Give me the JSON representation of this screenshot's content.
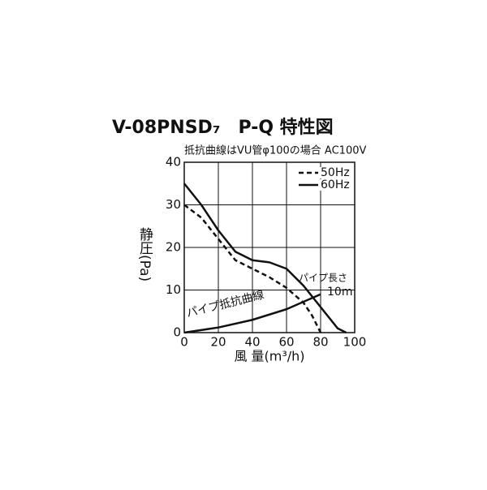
{
  "chart_data": {
    "type": "line",
    "title": "V-08PNSD₇　P-Q 特性図",
    "subtitle": "抵抗曲線はVU管φ100の場合 AC100V",
    "x_label": "風 量(m³/h)",
    "y_label": "静圧(Pa)",
    "xlim": [
      0,
      100
    ],
    "xticks": [
      0,
      20,
      40,
      60,
      80,
      100
    ],
    "ylim": [
      0,
      40
    ],
    "yticks": [
      0,
      10,
      20,
      30,
      40
    ],
    "grid": true,
    "legend": "upper right",
    "series": [
      {
        "name": "50Hz",
        "color": "#111111",
        "dash": true,
        "x": [
          0,
          10,
          20,
          30,
          40,
          50,
          60,
          70,
          75,
          80
        ],
        "values": [
          30,
          27,
          22,
          17,
          15,
          13,
          10.5,
          7,
          4,
          0
        ]
      },
      {
        "name": "60Hz",
        "color": "#111111",
        "dash": false,
        "x": [
          0,
          10,
          20,
          30,
          40,
          50,
          60,
          70,
          80,
          90,
          95
        ],
        "values": [
          35,
          30,
          24,
          19,
          17,
          16.5,
          15,
          11,
          6,
          1,
          0
        ]
      },
      {
        "name": "パイプ抵抗曲線",
        "color": "#111111",
        "dash": false,
        "legend": false,
        "x": [
          0,
          20,
          40,
          60,
          80
        ],
        "values": [
          0,
          1.2,
          3,
          5.5,
          9
        ]
      }
    ],
    "annotations": [
      "パイプ長さ",
      "10m"
    ]
  }
}
